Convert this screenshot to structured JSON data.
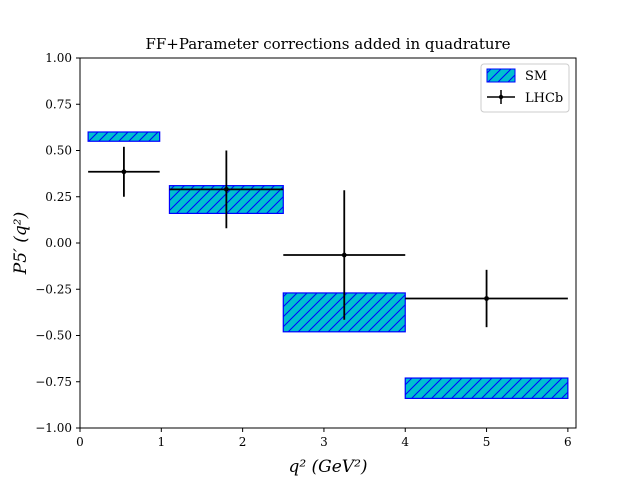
{
  "chart_data": {
    "type": "bar",
    "title": "FF+Parameter corrections added in quadrature",
    "xlabel": "q² (GeV²)",
    "ylabel": "P5′ (q²)",
    "xlim": [
      0,
      6.1
    ],
    "ylim": [
      -1.0,
      1.0
    ],
    "x_ticks": [
      0,
      1,
      2,
      3,
      4,
      5,
      6
    ],
    "y_ticks": [
      -1.0,
      -0.75,
      -0.5,
      -0.25,
      0.0,
      0.25,
      0.5,
      0.75,
      1.0
    ],
    "x_tick_labels": [
      "0",
      "1",
      "2",
      "3",
      "4",
      "5",
      "6"
    ],
    "y_tick_labels": [
      "−1.00",
      "−0.75",
      "−0.50",
      "−0.25",
      "0.00",
      "0.25",
      "0.50",
      "0.75",
      "1.00"
    ],
    "grid": false,
    "legend_position": "top-right",
    "colors": {
      "sm_fill": "#00bfcf",
      "sm_edge": "#0000ff",
      "lhcb": "#000000"
    },
    "series": [
      {
        "name": "SM",
        "kind": "band",
        "bins": [
          {
            "x_low": 0.1,
            "x_high": 0.98,
            "y_low": 0.55,
            "y_high": 0.6
          },
          {
            "x_low": 1.1,
            "x_high": 2.5,
            "y_low": 0.16,
            "y_high": 0.31
          },
          {
            "x_low": 2.5,
            "x_high": 4.0,
            "y_low": -0.48,
            "y_high": -0.27
          },
          {
            "x_low": 4.0,
            "x_high": 6.0,
            "y_low": -0.84,
            "y_high": -0.73
          }
        ]
      },
      {
        "name": "LHCb",
        "kind": "errorbar",
        "points": [
          {
            "x": 0.54,
            "y": 0.385,
            "x_low": 0.1,
            "x_high": 0.98,
            "y_err_low": 0.135,
            "y_err_high": 0.135
          },
          {
            "x": 1.8,
            "y": 0.29,
            "x_low": 1.1,
            "x_high": 2.5,
            "y_err_low": 0.21,
            "y_err_high": 0.21
          },
          {
            "x": 3.25,
            "y": -0.065,
            "x_low": 2.5,
            "x_high": 4.0,
            "y_err_low": 0.35,
            "y_err_high": 0.35
          },
          {
            "x": 5.0,
            "y": -0.3,
            "x_low": 4.0,
            "x_high": 6.0,
            "y_err_low": 0.155,
            "y_err_high": 0.155
          }
        ]
      }
    ]
  }
}
